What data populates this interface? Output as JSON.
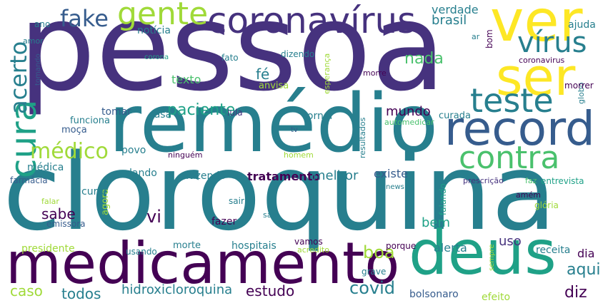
{
  "palette": {
    "viridis_dark": "#440154",
    "viridis_purple": "#46327e",
    "viridis_indigo": "#365c8d",
    "viridis_blue": "#277f8e",
    "viridis_teal": "#1fa187",
    "viridis_green": "#4ac16d",
    "viridis_lime": "#a0da39",
    "viridis_yellow": "#fde725"
  },
  "words": {
    "pessoa": "pessoa",
    "cloroquina": "cloroquina",
    "remedio": "remédio",
    "medicamento": "medicamento",
    "ver": "ver",
    "deus": "deus",
    "coronavirus_big": "coronavírus",
    "ser": "ser",
    "record": "record",
    "teste": "teste",
    "cura": "cura",
    "contra": "contra",
    "gente": "gente",
    "virus": "vírus",
    "medico": "médico",
    "acerto": "acerto",
    "fake": "fake",
    "paciente": "paciente",
    "covid": "covid",
    "hidroxicloroquina": "hidroxicloroquina",
    "estudo": "estudo",
    "todos": "todos",
    "tratamento": "tratamento",
    "melhor": "melhor",
    "existe": "existe",
    "mundo": "mundo",
    "boa": "boa",
    "aqui": "aqui",
    "diz": "diz",
    "brasil": "brasil",
    "verdade": "verdade",
    "nada": "nada",
    "texto": "texto",
    "fe": "fé",
    "vi": "vi",
    "sabe": "sabe",
    "bem": "bem",
    "caso": "caso",
    "presidente": "presidente",
    "uso": "uso",
    "dia": "dia",
    "receita": "receita",
    "alerta": "alerta",
    "bolsonaro": "bolsonaro",
    "efeito": "efeito",
    "ajuda": "ajuda",
    "noticia": "notícia",
    "ano": "ano",
    "amor": "amor",
    "corona": "corona",
    "fato": "fato",
    "dizendo": "dizendo",
    "esperanca": "esperança",
    "morre": "morre",
    "anvisa": "anvisa",
    "tomando": "tomando",
    "casa": "casa",
    "tomar": "tomar",
    "funciona": "funciona",
    "moca": "moça",
    "lula": "lula",
    "jornal": "jornal",
    "curada": "curada",
    "automedicar": "automedicar",
    "tv": "tv",
    "resultados": "resultados",
    "homem": "homem",
    "ninguem": "ninguém",
    "povo": "povo",
    "dando": "dando",
    "fazendo": "fazendo",
    "agora": "agora",
    "medica": "médica",
    "farmacia": "farmácia",
    "falar": "falar",
    "curar": "curar",
    "emissora": "emissora",
    "sair": "sair",
    "fazer": "fazer",
    "saiu": "saiu",
    "hospitais": "hospitais",
    "vamos": "vamos",
    "morte": "morte",
    "usando": "usando",
    "acredito": "acredito",
    "porque": "porque",
    "grave": "grave",
    "sempre": "sempre",
    "falando": "falando",
    "gloria": "glória",
    "amem": "amém",
    "news": "news",
    "prescricao": "prescrição",
    "faz": "faz",
    "entrevista": "entrevista",
    "globo": "globo",
    "morrer": "morrer",
    "coronavirus_small": "coronavirus",
    "ar": "ar",
    "bom": "bom"
  }
}
